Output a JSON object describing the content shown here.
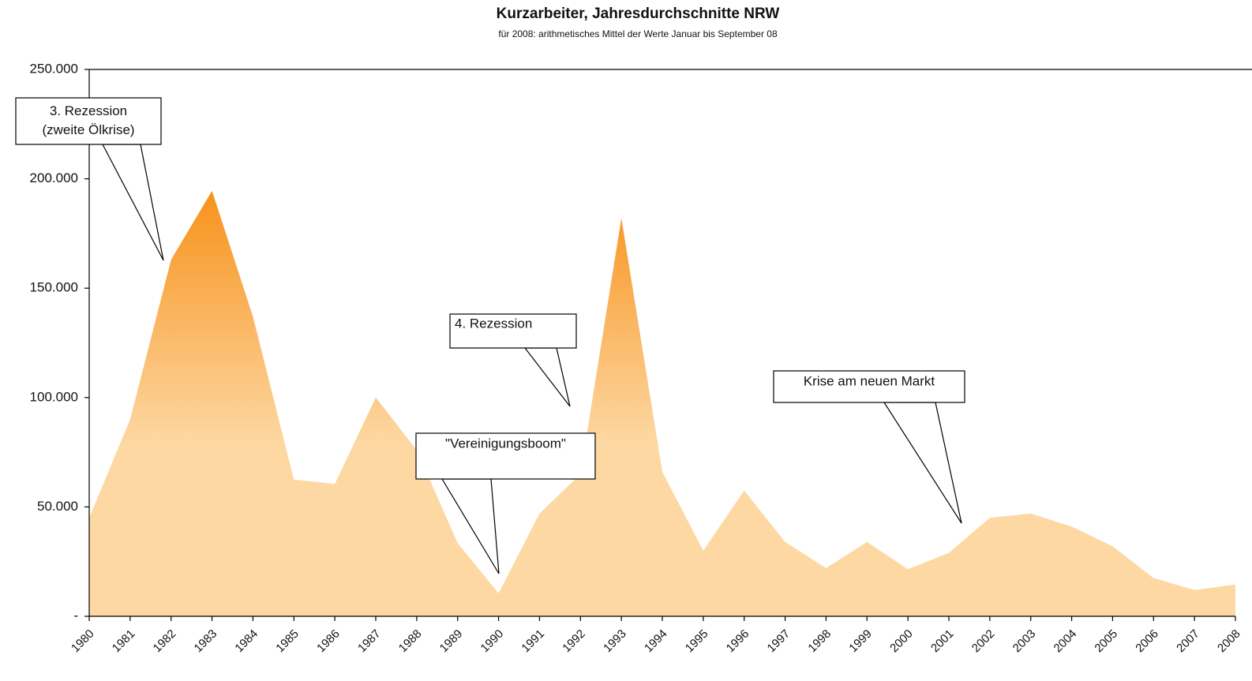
{
  "chart_data": {
    "type": "area",
    "title": "Kurzarbeiter, Jahresdurchschnitte NRW",
    "subtitle": "für 2008: arithmetisches Mittel der Werte Januar bis September 08",
    "categories": [
      "1980",
      "1981",
      "1982",
      "1983",
      "1984",
      "1985",
      "1986",
      "1987",
      "1988",
      "1989",
      "1990",
      "1991",
      "1992",
      "1993",
      "1994",
      "1995",
      "1996",
      "1997",
      "1998",
      "1999",
      "2000",
      "2001",
      "2002",
      "2003",
      "2004",
      "2005",
      "2006",
      "2007",
      "2008"
    ],
    "values": [
      45000,
      90000,
      163000,
      194500,
      137000,
      62500,
      60500,
      100000,
      76000,
      33500,
      10500,
      47000,
      65000,
      182000,
      66000,
      30000,
      57500,
      34000,
      22000,
      34000,
      21500,
      29000,
      45000,
      47000,
      41000,
      32000,
      17500,
      12000,
      14500
    ],
    "gradient": [
      "#f7921c",
      "#fdd8a3"
    ],
    "ylim": [
      0,
      250000
    ],
    "yticks": [
      {
        "value": 0,
        "label": "-"
      },
      {
        "value": 50000,
        "label": "50.000"
      },
      {
        "value": 100000,
        "label": "100.000"
      },
      {
        "value": 150000,
        "label": "150.000"
      },
      {
        "value": 200000,
        "label": "200.000"
      },
      {
        "value": 250000,
        "label": "250.000"
      }
    ],
    "grid": false,
    "annotations": [
      {
        "lines": [
          "3. Rezession",
          "(zweite Ölkrise)"
        ]
      },
      {
        "lines": [
          "4. Rezession"
        ]
      },
      {
        "lines": [
          "\"Vereinigungsboom\""
        ]
      },
      {
        "lines": [
          "Krise am neuen Markt"
        ]
      }
    ]
  }
}
